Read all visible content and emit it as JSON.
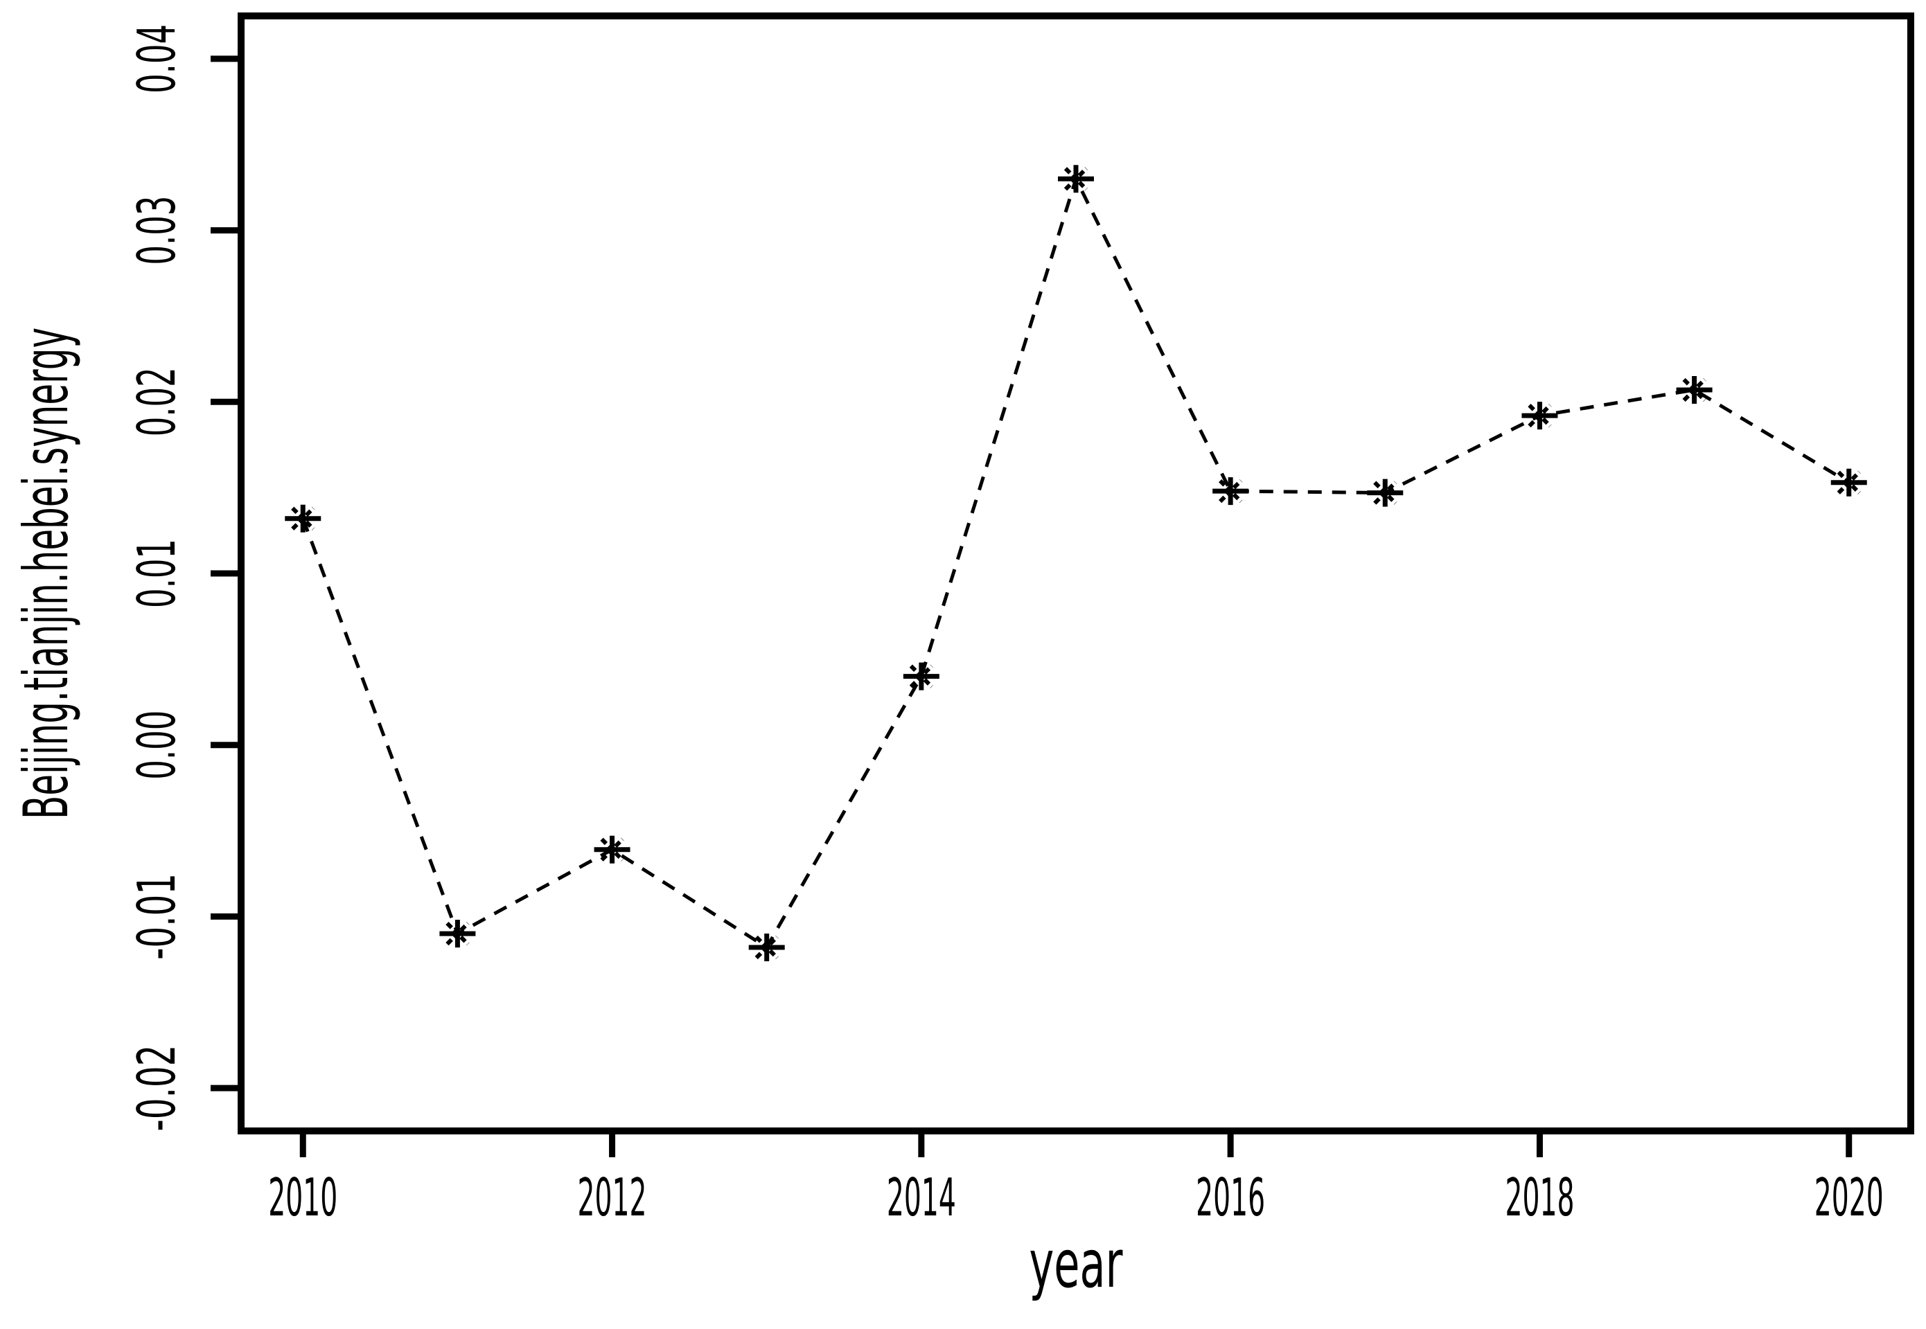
{
  "chart_data": {
    "type": "line",
    "title": "",
    "xlabel": "year",
    "ylabel": "Beijing.tianjin.hebei.synergy",
    "x": [
      2010,
      2011,
      2012,
      2013,
      2014,
      2015,
      2016,
      2017,
      2018,
      2019,
      2020
    ],
    "values": [
      0.0132,
      -0.011,
      -0.0061,
      -0.0118,
      0.004,
      0.033,
      0.0148,
      0.0147,
      0.0192,
      0.0207,
      0.0153
    ],
    "series": [
      {
        "name": "Beijing.tianjin.hebei.synergy",
        "values": [
          0.0132,
          -0.011,
          -0.0061,
          -0.0118,
          0.004,
          0.033,
          0.0148,
          0.0147,
          0.0192,
          0.0207,
          0.0153
        ]
      }
    ],
    "xlim": [
      2009.6,
      2020.4
    ],
    "ylim": [
      -0.0225,
      0.0425
    ],
    "x_ticks": [
      2010,
      2012,
      2014,
      2016,
      2018,
      2020
    ],
    "x_tick_labels": [
      "2010",
      "2012",
      "2014",
      "2016",
      "2018",
      "2020"
    ],
    "y_ticks": [
      -0.02,
      -0.01,
      0.0,
      0.01,
      0.02,
      0.03,
      0.04
    ],
    "y_tick_labels": [
      "-0.02",
      "-0.01",
      "0.00",
      "0.01",
      "0.02",
      "0.03",
      "0.04"
    ],
    "grid": false,
    "legend_position": "none",
    "line_style": "dashed",
    "marker": "star-asterisk-pch8",
    "line_color": "#000000",
    "marker_color": "#000000",
    "axis_color": "#000000",
    "background_color": "#ffffff"
  }
}
